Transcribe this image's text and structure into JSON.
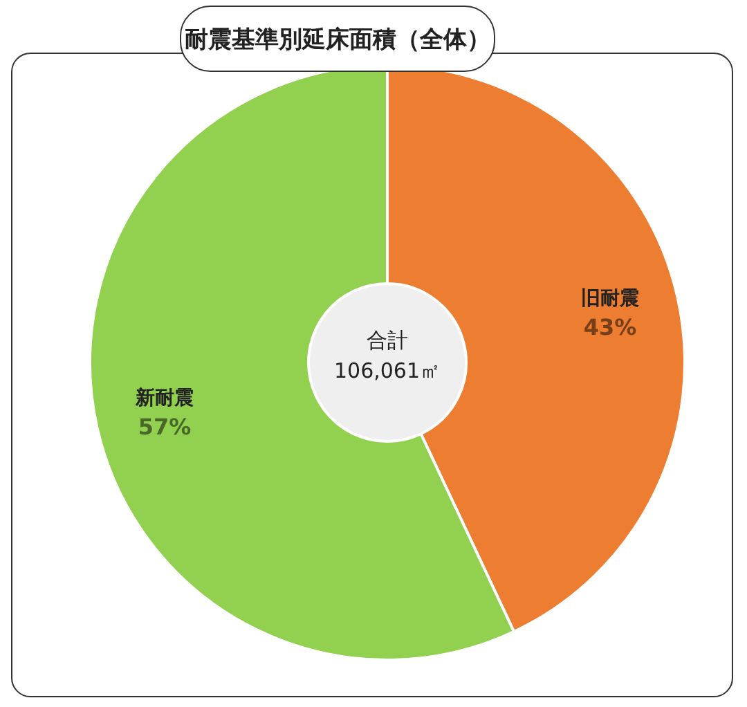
{
  "chart_data": {
    "type": "donut",
    "title": "耐震基準別延床面積（全体）",
    "categories": [
      "旧耐震",
      "新耐震"
    ],
    "values": [
      43,
      57
    ],
    "colors": [
      "#ed7d31",
      "#92d050"
    ],
    "value_labels": [
      "43%",
      "57%"
    ],
    "annotations": [
      "合計",
      "106,061㎡"
    ]
  }
}
